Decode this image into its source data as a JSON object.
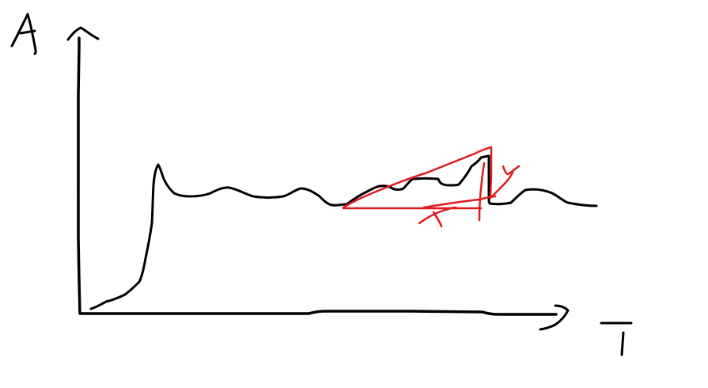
{
  "diagram": {
    "axes": {
      "y_axis_label": "A",
      "x_axis_label": "T"
    },
    "colors": {
      "background": "#ffffff",
      "curve": "#000000",
      "annotation": "#e0191c"
    },
    "curve": {
      "description_style": "hand-drawn"
    },
    "annotation": {
      "labels": [
        "x",
        "y"
      ]
    }
  }
}
